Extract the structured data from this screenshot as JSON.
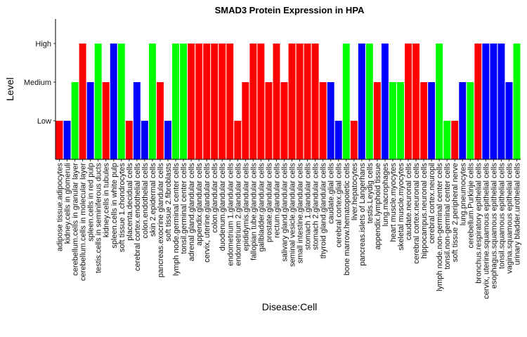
{
  "chart_data": {
    "type": "bar",
    "title": "SMAD3 Protein Expression in HPA",
    "xlabel": "Disease:Cell",
    "ylabel": "Level",
    "y_levels": [
      "Low",
      "Medium",
      "High"
    ],
    "grid": false,
    "legend": "none",
    "colors": {
      "red": "#ff0000",
      "green": "#00ff00",
      "blue": "#0000ff"
    },
    "bars": [
      {
        "category": "adipose tissue.adipocytes",
        "value": "Low",
        "color": "red"
      },
      {
        "category": "kidney.cells in glomeruli",
        "value": "Low",
        "color": "blue"
      },
      {
        "category": "cerebellum.cells in granular layer",
        "value": "Medium",
        "color": "green"
      },
      {
        "category": "cerebellum.cells in molecular layer",
        "value": "High",
        "color": "red"
      },
      {
        "category": "spleen.cells in red pulp",
        "value": "Medium",
        "color": "blue"
      },
      {
        "category": "testis.cells in seminiferous ducts",
        "value": "High",
        "color": "green"
      },
      {
        "category": "kidney.cells in tubules",
        "value": "Medium",
        "color": "red"
      },
      {
        "category": "spleen.cells in white pulp",
        "value": "High",
        "color": "blue"
      },
      {
        "category": "soft tissue 1.chondrocytes",
        "value": "High",
        "color": "green"
      },
      {
        "category": "placenta.decidual cells",
        "value": "Low",
        "color": "red"
      },
      {
        "category": "cerebral cortex.endothelial cells",
        "value": "Medium",
        "color": "blue"
      },
      {
        "category": "colon.endothelial cells",
        "value": "Low",
        "color": "blue"
      },
      {
        "category": "skin 2.epidermal cells",
        "value": "High",
        "color": "green"
      },
      {
        "category": "pancreas.exocrine glandular cells",
        "value": "Medium",
        "color": "red"
      },
      {
        "category": "soft tissue 2.fibroblasts",
        "value": "Low",
        "color": "blue"
      },
      {
        "category": "lymph node.germinal center cells",
        "value": "High",
        "color": "green"
      },
      {
        "category": "tonsil.germinal center cells",
        "value": "High",
        "color": "green"
      },
      {
        "category": "adrenal gland.glandular cells",
        "value": "High",
        "color": "red"
      },
      {
        "category": "appendix.glandular cells",
        "value": "High",
        "color": "red"
      },
      {
        "category": "cervix, uterine.glandular cells",
        "value": "High",
        "color": "red"
      },
      {
        "category": "colon.glandular cells",
        "value": "High",
        "color": "red"
      },
      {
        "category": "duodenum.glandular cells",
        "value": "High",
        "color": "red"
      },
      {
        "category": "endometrium 1.glandular cells",
        "value": "High",
        "color": "red"
      },
      {
        "category": "endometrium 2.glandular cells",
        "value": "Low",
        "color": "red"
      },
      {
        "category": "epididymis.glandular cells",
        "value": "Medium",
        "color": "red"
      },
      {
        "category": "fallopian tube.glandular cells",
        "value": "High",
        "color": "red"
      },
      {
        "category": "gallbladder.glandular cells",
        "value": "High",
        "color": "red"
      },
      {
        "category": "prostate.glandular cells",
        "value": "Medium",
        "color": "red"
      },
      {
        "category": "rectum.glandular cells",
        "value": "High",
        "color": "red"
      },
      {
        "category": "salivary gland.glandular cells",
        "value": "Medium",
        "color": "red"
      },
      {
        "category": "seminal vesicle.glandular cells",
        "value": "High",
        "color": "red"
      },
      {
        "category": "small intestine.glandular cells",
        "value": "High",
        "color": "red"
      },
      {
        "category": "stomach 1.glandular cells",
        "value": "High",
        "color": "red"
      },
      {
        "category": "stomach 2.glandular cells",
        "value": "High",
        "color": "red"
      },
      {
        "category": "thyroid gland.glandular cells",
        "value": "Medium",
        "color": "red"
      },
      {
        "category": "caudate.glial cells",
        "value": "Medium",
        "color": "blue"
      },
      {
        "category": "cerebral cortex.glial cells",
        "value": "Low",
        "color": "blue"
      },
      {
        "category": "bone marrow.hematopoietic cells",
        "value": "High",
        "color": "green"
      },
      {
        "category": "liver.hepatocytes",
        "value": "Low",
        "color": "red"
      },
      {
        "category": "pancreas.islets of Langerhans",
        "value": "High",
        "color": "blue"
      },
      {
        "category": "testis.Leydig cells",
        "value": "High",
        "color": "green"
      },
      {
        "category": "appendix.lymphoid tissue",
        "value": "Medium",
        "color": "red"
      },
      {
        "category": "lung.macrophages",
        "value": "High",
        "color": "blue"
      },
      {
        "category": "heart muscle.myocytes",
        "value": "Medium",
        "color": "green"
      },
      {
        "category": "skeletal muscle.myocytes",
        "value": "Medium",
        "color": "green"
      },
      {
        "category": "caudate.neuronal cells",
        "value": "High",
        "color": "red"
      },
      {
        "category": "cerebral cortex.neuronal cells",
        "value": "High",
        "color": "red"
      },
      {
        "category": "hippocampus.neuronal cells",
        "value": "Medium",
        "color": "red"
      },
      {
        "category": "cerebral cortex.neuropil",
        "value": "Medium",
        "color": "blue"
      },
      {
        "category": "lymph node.non-germinal center cells",
        "value": "High",
        "color": "green"
      },
      {
        "category": "tonsil.non-germinal center cells",
        "value": "Low",
        "color": "green"
      },
      {
        "category": "soft tissue 2.peripheral nerve",
        "value": "Low",
        "color": "red"
      },
      {
        "category": "lung.pneumocytes",
        "value": "Medium",
        "color": "blue"
      },
      {
        "category": "cerebellum.Purkinje cells",
        "value": "Medium",
        "color": "green"
      },
      {
        "category": "bronchus.respiratory epithelial cells",
        "value": "High",
        "color": "red"
      },
      {
        "category": "cervix, uterine.squamous epithelial cells",
        "value": "High",
        "color": "blue"
      },
      {
        "category": "esophagus.squamous epithelial cells",
        "value": "High",
        "color": "blue"
      },
      {
        "category": "tonsil.squamous epithelial cells",
        "value": "High",
        "color": "blue"
      },
      {
        "category": "vagina.squamous epithelial cells",
        "value": "Medium",
        "color": "blue"
      },
      {
        "category": "urinary bladder.urothelial cells",
        "value": "High",
        "color": "green"
      }
    ]
  }
}
